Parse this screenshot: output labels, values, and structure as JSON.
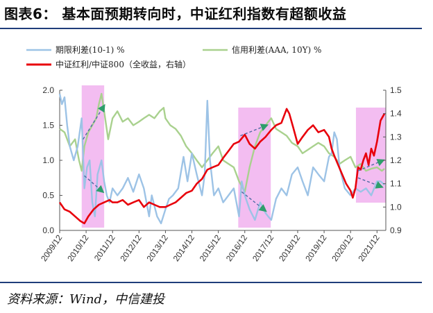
{
  "title": "图表6： 基本面预期转向时，中证红利指数有超额收益",
  "source": "资料来源：Wind，中信建投",
  "chart_data": {
    "type": "line",
    "legend_placement": "top",
    "left_axis": {
      "ylim": [
        0,
        2.0
      ],
      "ticks": [
        "0.0",
        "0.5",
        "1.0",
        "1.5",
        "2.0"
      ]
    },
    "right_axis": {
      "ylim": [
        0.9,
        1.5
      ],
      "ticks": [
        "0.9",
        "1.0",
        "1.1",
        "1.2",
        "1.3",
        "1.4",
        "1.5"
      ]
    },
    "x_range": [
      2009.917,
      2022.25
    ],
    "x_tick_labels": [
      "2009/12",
      "2010/12",
      "2011/12",
      "2012/12",
      "2013/12",
      "2014/12",
      "2015/12",
      "2016/12",
      "2017/12",
      "2018/12",
      "2019/12",
      "2020/12",
      "2021/12"
    ],
    "x_tick_values": [
      2009.917,
      2010.917,
      2011.917,
      2012.917,
      2013.917,
      2014.917,
      2015.917,
      2016.917,
      2017.917,
      2018.917,
      2019.917,
      2020.917,
      2021.917
    ],
    "highlight_periods": [
      [
        2010.75,
        2011.6
      ],
      [
        2016.67,
        2017.9
      ],
      [
        2021.12,
        2022.25
      ]
    ],
    "series": [
      {
        "name": "期限利差(10-1) %",
        "axis": "left",
        "color": "#9dc3e6",
        "x": [
          2009.917,
          2010.0,
          2010.1,
          2010.2,
          2010.3,
          2010.45,
          2010.6,
          2010.75,
          2010.85,
          2010.95,
          2011.05,
          2011.15,
          2011.25,
          2011.35,
          2011.5,
          2011.6,
          2011.7,
          2011.8,
          2011.917,
          2012.1,
          2012.3,
          2012.5,
          2012.7,
          2012.917,
          2013.1,
          2013.3,
          2013.4,
          2013.5,
          2013.6,
          2013.75,
          2013.917,
          2014.05,
          2014.2,
          2014.4,
          2014.6,
          2014.75,
          2014.917,
          2015.1,
          2015.3,
          2015.4,
          2015.5,
          2015.6,
          2015.75,
          2015.917,
          2016.1,
          2016.3,
          2016.5,
          2016.7,
          2016.8,
          2016.917,
          2017.1,
          2017.3,
          2017.5,
          2017.7,
          2017.8,
          2017.917,
          2018.1,
          2018.3,
          2018.5,
          2018.7,
          2018.917,
          2019.1,
          2019.3,
          2019.5,
          2019.7,
          2019.917,
          2020.1,
          2020.2,
          2020.3,
          2020.4,
          2020.5,
          2020.7,
          2020.917,
          2021.1,
          2021.3,
          2021.5,
          2021.7,
          2021.917,
          2022.05,
          2022.2
        ],
        "values": [
          1.95,
          1.8,
          1.9,
          1.5,
          1.2,
          1.0,
          1.2,
          1.6,
          0.6,
          0.9,
          1.0,
          0.4,
          0.2,
          0.8,
          1.0,
          0.7,
          0.5,
          0.4,
          0.6,
          0.5,
          0.6,
          0.75,
          0.55,
          0.8,
          0.6,
          0.2,
          0.5,
          0.35,
          0.2,
          0.1,
          0.3,
          0.45,
          0.5,
          0.6,
          1.05,
          0.7,
          1.1,
          0.8,
          0.5,
          0.8,
          1.85,
          1.0,
          0.5,
          0.6,
          0.4,
          0.5,
          0.6,
          0.2,
          0.7,
          0.5,
          0.3,
          0.15,
          0.4,
          0.25,
          0.2,
          0.15,
          0.45,
          0.6,
          0.5,
          0.8,
          0.9,
          0.7,
          0.5,
          0.9,
          0.8,
          0.7,
          1.05,
          1.1,
          1.4,
          1.3,
          0.9,
          0.6,
          0.5,
          0.6,
          0.55,
          0.6,
          0.5,
          0.7,
          0.7,
          0.65
        ]
      },
      {
        "name": "信用利差(AAA, 10Y) %",
        "axis": "left",
        "color": "#a9d18e",
        "x": [
          2009.917,
          2010.1,
          2010.3,
          2010.5,
          2010.65,
          2010.75,
          2010.85,
          2011.0,
          2011.15,
          2011.3,
          2011.4,
          2011.5,
          2011.6,
          2011.75,
          2011.917,
          2012.1,
          2012.3,
          2012.5,
          2012.7,
          2012.917,
          2013.1,
          2013.3,
          2013.5,
          2013.7,
          2013.85,
          2013.917,
          2014.1,
          2014.3,
          2014.5,
          2014.7,
          2014.917,
          2015.1,
          2015.3,
          2015.5,
          2015.7,
          2015.917,
          2016.1,
          2016.3,
          2016.5,
          2016.7,
          2016.917,
          2017.1,
          2017.3,
          2017.5,
          2017.7,
          2017.917,
          2018.1,
          2018.3,
          2018.5,
          2018.7,
          2018.917,
          2019.1,
          2019.3,
          2019.5,
          2019.7,
          2019.917,
          2020.1,
          2020.3,
          2020.5,
          2020.7,
          2020.917,
          2021.1,
          2021.3,
          2021.5,
          2021.7,
          2021.917,
          2022.1,
          2022.2
        ],
        "values": [
          1.45,
          1.4,
          1.2,
          1.3,
          1.0,
          0.85,
          1.2,
          1.4,
          1.5,
          1.6,
          1.8,
          1.95,
          1.7,
          1.3,
          1.6,
          1.7,
          1.55,
          1.6,
          1.5,
          1.55,
          1.6,
          1.65,
          1.6,
          1.7,
          1.75,
          1.6,
          1.5,
          1.45,
          1.35,
          1.2,
          1.1,
          1.0,
          0.9,
          1.0,
          1.1,
          1.2,
          1.0,
          0.95,
          0.9,
          0.7,
          0.55,
          0.9,
          1.2,
          1.4,
          1.5,
          1.6,
          1.45,
          1.4,
          1.35,
          1.25,
          1.2,
          1.1,
          1.15,
          1.2,
          1.25,
          1.2,
          1.1,
          1.05,
          0.95,
          1.0,
          1.05,
          0.9,
          0.95,
          0.85,
          0.88,
          0.9,
          0.85,
          0.88
        ]
      },
      {
        "name": "中证红利/中证800（全收益，右轴）",
        "axis": "right",
        "color": "#e8000b",
        "x": [
          2009.917,
          2010.1,
          2010.3,
          2010.5,
          2010.7,
          2010.85,
          2011.0,
          2011.2,
          2011.4,
          2011.6,
          2011.8,
          2011.917,
          2012.1,
          2012.3,
          2012.5,
          2012.7,
          2012.917,
          2013.1,
          2013.3,
          2013.5,
          2013.7,
          2013.917,
          2014.1,
          2014.3,
          2014.5,
          2014.7,
          2014.917,
          2015.1,
          2015.3,
          2015.5,
          2015.7,
          2015.917,
          2016.1,
          2016.3,
          2016.5,
          2016.7,
          2016.917,
          2017.1,
          2017.3,
          2017.5,
          2017.7,
          2017.917,
          2018.1,
          2018.3,
          2018.5,
          2018.6,
          2018.75,
          2018.917,
          2019.1,
          2019.3,
          2019.5,
          2019.7,
          2019.917,
          2020.1,
          2020.2,
          2020.3,
          2020.45,
          2020.6,
          2020.75,
          2020.917,
          2021.0,
          2021.1,
          2021.2,
          2021.3,
          2021.4,
          2021.5,
          2021.6,
          2021.7,
          2021.8,
          2021.917,
          2022.05,
          2022.2
        ],
        "values": [
          1.02,
          0.99,
          0.98,
          0.96,
          0.94,
          0.93,
          0.96,
          0.99,
          1.01,
          1.02,
          1.03,
          1.02,
          1.02,
          1.03,
          1.01,
          1.02,
          1.03,
          1.0,
          1.02,
          1.01,
          1.0,
          1.0,
          1.01,
          1.02,
          1.04,
          1.06,
          1.07,
          1.1,
          1.12,
          1.16,
          1.17,
          1.18,
          1.21,
          1.24,
          1.27,
          1.28,
          1.31,
          1.27,
          1.25,
          1.28,
          1.3,
          1.33,
          1.35,
          1.36,
          1.42,
          1.4,
          1.34,
          1.27,
          1.3,
          1.33,
          1.35,
          1.32,
          1.33,
          1.3,
          1.25,
          1.22,
          1.18,
          1.14,
          1.1,
          1.07,
          1.04,
          1.08,
          1.17,
          1.16,
          1.2,
          1.23,
          1.18,
          1.25,
          1.22,
          1.28,
          1.37,
          1.4
        ]
      }
    ]
  }
}
